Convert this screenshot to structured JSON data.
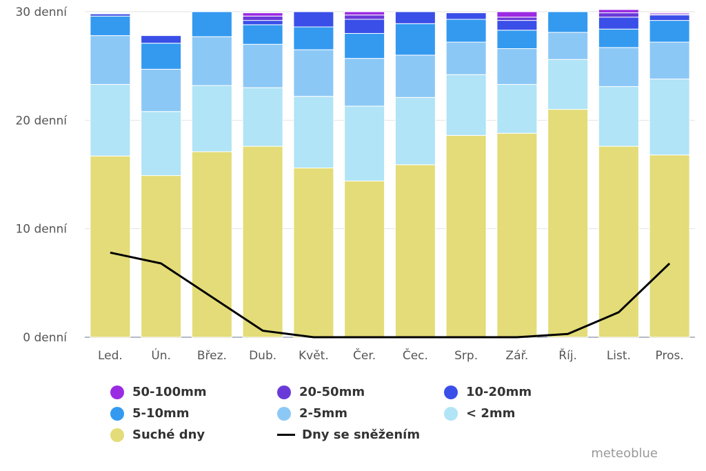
{
  "chart_data": {
    "type": "bar",
    "stacked": true,
    "categories": [
      "Led.",
      "Ún.",
      "Břez.",
      "Dub.",
      "Květ.",
      "Čer.",
      "Čec.",
      "Srp.",
      "Zář.",
      "Říj.",
      "List.",
      "Pros."
    ],
    "ylim": [
      0,
      30
    ],
    "yticks": [
      0,
      10,
      20,
      30
    ],
    "ytick_labels": [
      "0 denní",
      "10 denní",
      "20 denní",
      "30 denní"
    ],
    "series": [
      {
        "name": "Suché dny",
        "color": "#e3dc78",
        "values": [
          16.7,
          14.9,
          17.1,
          17.6,
          15.6,
          14.4,
          15.9,
          18.6,
          18.8,
          21.0,
          17.6,
          16.8
        ]
      },
      {
        "name": "< 2mm",
        "color": "#b0e4f6",
        "values": [
          6.6,
          5.9,
          6.1,
          5.4,
          6.6,
          6.9,
          6.2,
          5.6,
          4.5,
          4.6,
          5.5,
          7.0
        ]
      },
      {
        "name": "2-5mm",
        "color": "#8cc8f6",
        "values": [
          4.5,
          3.9,
          4.5,
          4.0,
          4.3,
          4.4,
          3.9,
          3.0,
          3.3,
          2.5,
          3.6,
          3.4
        ]
      },
      {
        "name": "5-10mm",
        "color": "#339af0",
        "values": [
          1.8,
          2.4,
          2.3,
          1.8,
          2.1,
          2.3,
          2.9,
          2.1,
          1.7,
          1.9,
          1.7,
          2.0
        ]
      },
      {
        "name": "10-20mm",
        "color": "#3a4fe8",
        "values": [
          0.2,
          0.7,
          0.0,
          0.4,
          1.4,
          1.3,
          1.1,
          0.6,
          0.9,
          0.0,
          1.1,
          0.5
        ]
      },
      {
        "name": "20-50mm",
        "color": "#6a3ad9",
        "values": [
          0.0,
          0.0,
          0.0,
          0.4,
          0.0,
          0.4,
          0.0,
          0.0,
          0.3,
          0.0,
          0.4,
          0.1
        ]
      },
      {
        "name": "50-100mm",
        "color": "#9b2be2",
        "values": [
          0.0,
          0.0,
          0.0,
          0.3,
          0.0,
          0.3,
          0.0,
          0.0,
          0.5,
          0.0,
          0.3,
          0.1
        ]
      }
    ],
    "line_series": {
      "name": "Dny se sněžením",
      "color": "#000000",
      "values": [
        7.8,
        6.8,
        3.7,
        0.6,
        0.0,
        0.0,
        0.0,
        0.0,
        0.0,
        0.3,
        2.3,
        6.8
      ]
    }
  },
  "legend": [
    {
      "label": "50-100mm",
      "color": "#9b2be2",
      "type": "dot"
    },
    {
      "label": "20-50mm",
      "color": "#6a3ad9",
      "type": "dot"
    },
    {
      "label": "10-20mm",
      "color": "#3a4fe8",
      "type": "dot"
    },
    {
      "label": "5-10mm",
      "color": "#339af0",
      "type": "dot"
    },
    {
      "label": "2-5mm",
      "color": "#8cc8f6",
      "type": "dot"
    },
    {
      "label": "< 2mm",
      "color": "#b0e4f6",
      "type": "dot"
    },
    {
      "label": "Suché dny",
      "color": "#e3dc78",
      "type": "dot"
    },
    {
      "label": "Dny se sněžením",
      "color": "#000000",
      "type": "line"
    }
  ],
  "credit": "meteoblue"
}
